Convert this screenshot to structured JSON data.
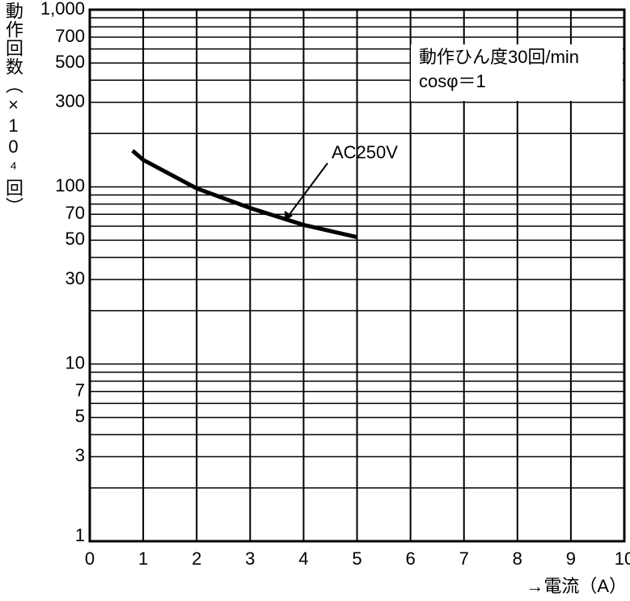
{
  "chart_data": {
    "type": "line",
    "ylabel": "動作回数（×10⁴回）",
    "xlabel": "→電流（A）",
    "annotations": [
      "動作ひん度30回/min",
      "cosφ＝1"
    ],
    "log_y": true,
    "grid": true,
    "xlim": [
      0,
      10
    ],
    "xticks": [
      0,
      1,
      2,
      3,
      4,
      5,
      6,
      7,
      8,
      9,
      10
    ],
    "ylim": [
      1,
      1000
    ],
    "yticks": [
      1,
      3,
      5,
      7,
      10,
      30,
      50,
      70,
      100,
      300,
      500,
      700,
      {
        "value": 1000,
        "label": "1,000"
      }
    ],
    "y_minor_gridlines": [
      2,
      4,
      6,
      8,
      9,
      20,
      40,
      60,
      80,
      90,
      200,
      400,
      600,
      800,
      900
    ],
    "x": [
      0.8,
      1,
      2,
      3,
      4,
      5
    ],
    "series": [
      {
        "name": "AC250V",
        "color": "#000000",
        "values": [
          160,
          142,
          98,
          76,
          61,
          52
        ]
      }
    ]
  }
}
